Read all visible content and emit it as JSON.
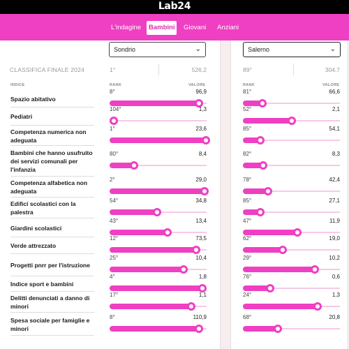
{
  "header": {
    "logo": "Lab24"
  },
  "nav": {
    "tabs": [
      {
        "label": "L'indagine"
      },
      {
        "label": "Bambini",
        "active": true
      },
      {
        "label": "Giovani"
      },
      {
        "label": "Anziani"
      }
    ]
  },
  "left": {
    "city": "Sondrio",
    "final_rank": "1°",
    "final_value": "526,2"
  },
  "right": {
    "city": "Salerno",
    "final_rank": "89°",
    "final_value": "304,7"
  },
  "labels": {
    "final": "CLASSIFICA FINALE 2024",
    "index": "INDICE",
    "rank": "RANK",
    "value": "VALORE"
  },
  "colors": {
    "accent": "#ef3fc3",
    "track": "#f7c9e8"
  },
  "rows": [
    {
      "label": "Spazio abitativo",
      "left": {
        "rank": "8°",
        "value": "96,9",
        "level": 0.92
      },
      "right": {
        "rank": "81°",
        "value": "66,6",
        "level": 0.2
      }
    },
    {
      "label": "Pediatri",
      "left": {
        "rank": "104°",
        "value": "1,3",
        "level": 0.03
      },
      "right": {
        "rank": "52°",
        "value": "2,1",
        "level": 0.5
      }
    },
    {
      "label": "Competenza numerica non adeguata",
      "left": {
        "rank": "1°",
        "value": "23,6",
        "level": 0.99
      },
      "right": {
        "rank": "85°",
        "value": "54,1",
        "level": 0.18
      }
    },
    {
      "label": "Bambini che hanno usufruito dei servizi comunali per l'infanzia",
      "left": {
        "rank": "80°",
        "value": "8,4",
        "level": 0.25
      },
      "right": {
        "rank": "82°",
        "value": "8,3",
        "level": 0.21
      }
    },
    {
      "label": "Competenza alfabetica non adeguata",
      "left": {
        "rank": "2°",
        "value": "29,0",
        "level": 0.98
      },
      "right": {
        "rank": "78°",
        "value": "42,4",
        "level": 0.26
      }
    },
    {
      "label": "Edifici scolastici con la palestra",
      "left": {
        "rank": "54°",
        "value": "34,8",
        "level": 0.49
      },
      "right": {
        "rank": "85°",
        "value": "27,1",
        "level": 0.18
      }
    },
    {
      "label": "Giardini scolastici",
      "left": {
        "rank": "43°",
        "value": "13,4",
        "level": 0.6
      },
      "right": {
        "rank": "47°",
        "value": "11,9",
        "level": 0.56
      }
    },
    {
      "label": "Verde attrezzato",
      "left": {
        "rank": "12°",
        "value": "73,5",
        "level": 0.89
      },
      "right": {
        "rank": "62°",
        "value": "19,0",
        "level": 0.41
      }
    },
    {
      "label": "Progetti pnrr per l'istruzione",
      "left": {
        "rank": "25°",
        "value": "10,4",
        "level": 0.76
      },
      "right": {
        "rank": "29°",
        "value": "10,2",
        "level": 0.74
      }
    },
    {
      "label": "Indice sport e bambini",
      "left": {
        "rank": "4°",
        "value": "1,8",
        "level": 0.96
      },
      "right": {
        "rank": "76°",
        "value": "0,6",
        "level": 0.28
      }
    },
    {
      "label": "Delitti denunciati a danno di minori",
      "left": {
        "rank": "17°",
        "value": "1,1",
        "level": 0.84
      },
      "right": {
        "rank": "24°",
        "value": "1,3",
        "level": 0.77
      }
    },
    {
      "label": "Spesa sociale per famiglie e minori",
      "left": {
        "rank": "8°",
        "value": "110,9",
        "level": 0.92
      },
      "right": {
        "rank": "68°",
        "value": "20,8",
        "level": 0.36
      }
    }
  ]
}
